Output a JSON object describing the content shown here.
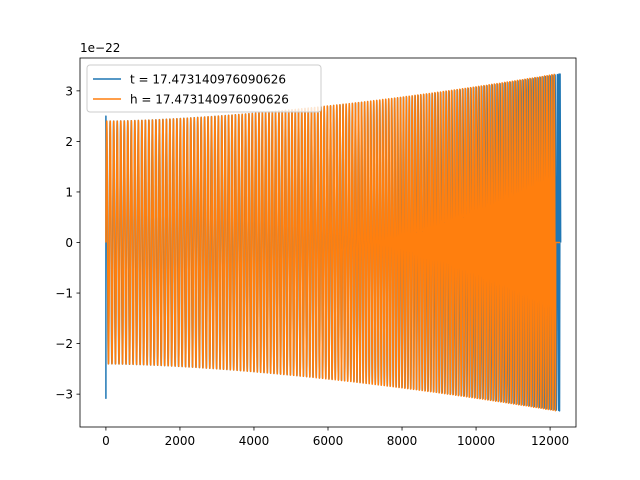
{
  "chart_data": {
    "type": "line",
    "title": "",
    "xlabel": "",
    "ylabel": "",
    "y_offset_label": "1e−22",
    "xlim": [
      -700,
      12700
    ],
    "ylim": [
      -3.65,
      3.65
    ],
    "x_ticks": [
      0,
      2000,
      4000,
      6000,
      8000,
      10000,
      12000
    ],
    "x_tick_labels": [
      "0",
      "2000",
      "4000",
      "6000",
      "8000",
      "10000",
      "12000"
    ],
    "y_ticks": [
      -3,
      -2,
      -1,
      0,
      1,
      2,
      3
    ],
    "y_tick_labels": [
      "−3",
      "−2",
      "−1",
      "0",
      "1",
      "2",
      "3"
    ],
    "grid": false,
    "legend_position": "top-left",
    "series": [
      {
        "name": "t = 17.473140976090626",
        "color": "#1f77b4",
        "description": "chirp waveform",
        "x_start": 0,
        "x_end": 12270,
        "amplitude_start": 2.4,
        "amplitude_end": 3.33,
        "peaks": [
          {
            "x": 0,
            "y": -3.08
          },
          {
            "x": 0,
            "y": 2.5
          }
        ],
        "tail_value": 0.0
      },
      {
        "name": "h = 17.473140976090626",
        "color": "#ff7f0e",
        "description": "chirp waveform",
        "x_start": 0,
        "x_end": 12150,
        "amplitude_start": 2.4,
        "amplitude_end": 3.33,
        "peaks": [
          {
            "x": 0,
            "y": -2.4
          },
          {
            "x": 0,
            "y": 2.4
          }
        ],
        "tail_value": 0.0,
        "tail_end": 12270
      }
    ]
  }
}
